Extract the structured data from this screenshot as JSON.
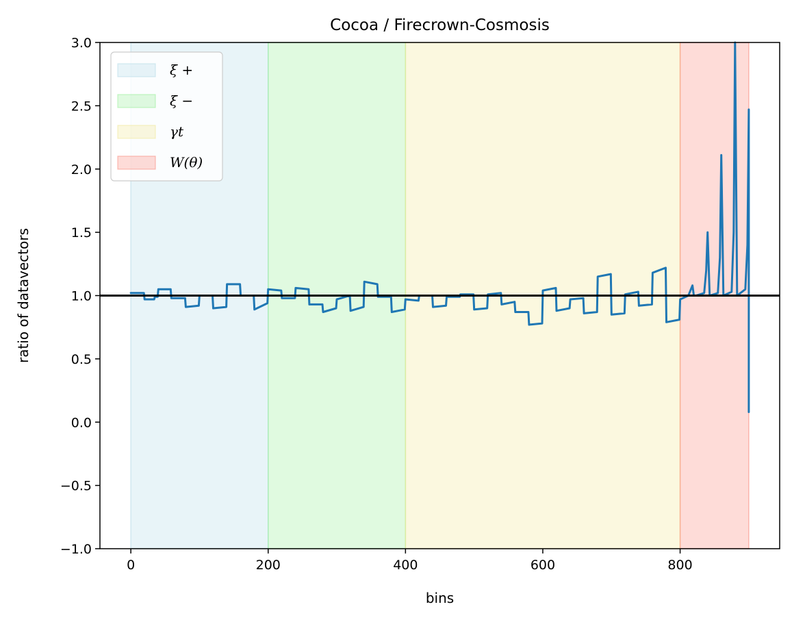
{
  "chart_data": {
    "type": "line",
    "title": "Cocoa / Firecrown-Cosmosis",
    "xlabel": "bins",
    "ylabel": "ratio of datavectors",
    "xlim": [
      -45,
      945
    ],
    "ylim": [
      -1.0,
      3.0
    ],
    "xticks": [
      0,
      200,
      400,
      600,
      800
    ],
    "yticks": [
      -1.0,
      -0.5,
      0.0,
      0.5,
      1.0,
      1.5,
      2.0,
      2.5,
      3.0
    ],
    "xtick_labels": [
      "0",
      "200",
      "400",
      "600",
      "800"
    ],
    "ytick_labels": [
      "−1.0",
      "−0.5",
      "0.0",
      "0.5",
      "1.0",
      "1.5",
      "2.0",
      "2.5",
      "3.0"
    ],
    "grid": false,
    "legend_position": "upper-left",
    "reference_line": {
      "y": 1.0,
      "color": "#000000"
    },
    "regions": [
      {
        "label": "ξ +",
        "x_start": 0,
        "x_end": 200,
        "color": "#add8e6"
      },
      {
        "label": "ξ −",
        "x_start": 200,
        "x_end": 400,
        "color": "#90ee90"
      },
      {
        "label": "γt",
        "x_start": 400,
        "x_end": 800,
        "color": "#f0e68c"
      },
      {
        "label": "W(θ)",
        "x_start": 800,
        "x_end": 900,
        "color": "#fa8072"
      }
    ],
    "series": [
      {
        "color": "#1f77b4",
        "x": [
          0,
          19,
          20,
          34,
          35,
          39,
          40,
          58,
          59,
          79,
          80,
          99,
          100,
          119,
          120,
          139,
          140,
          159,
          160,
          179,
          180,
          199,
          200,
          219,
          220,
          239,
          240,
          259,
          260,
          279,
          280,
          299,
          300,
          319,
          320,
          339,
          340,
          359,
          360,
          379,
          380,
          399,
          400,
          419,
          420,
          439,
          440,
          459,
          460,
          479,
          480,
          499,
          500,
          519,
          520,
          539,
          540,
          559,
          560,
          579,
          580,
          599,
          600,
          619,
          620,
          639,
          640,
          659,
          660,
          679,
          680,
          699,
          700,
          719,
          720,
          739,
          740,
          759,
          760,
          779,
          780,
          799,
          800,
          812,
          818,
          820,
          823,
          835,
          838,
          840,
          843,
          855,
          858,
          860,
          863,
          875,
          878,
          880,
          883,
          895,
          898,
          900,
          900
        ],
        "y": [
          1.02,
          1.02,
          0.97,
          0.97,
          0.99,
          0.99,
          1.05,
          1.05,
          0.98,
          0.98,
          0.91,
          0.92,
          1.0,
          1.0,
          0.9,
          0.91,
          1.09,
          1.09,
          1.0,
          1.0,
          0.89,
          0.94,
          1.05,
          1.04,
          0.98,
          0.98,
          1.06,
          1.05,
          0.93,
          0.93,
          0.87,
          0.9,
          0.97,
          1.0,
          0.88,
          0.91,
          1.11,
          1.09,
          0.99,
          0.99,
          0.87,
          0.89,
          0.97,
          0.96,
          1.0,
          1.0,
          0.91,
          0.92,
          0.99,
          0.99,
          1.01,
          1.01,
          0.89,
          0.9,
          1.01,
          1.02,
          0.93,
          0.95,
          0.87,
          0.87,
          0.77,
          0.78,
          1.04,
          1.06,
          0.88,
          0.9,
          0.97,
          0.98,
          0.86,
          0.87,
          1.15,
          1.17,
          0.85,
          0.86,
          1.01,
          1.03,
          0.92,
          0.93,
          1.18,
          1.22,
          0.79,
          0.81,
          0.97,
          1.0,
          1.08,
          1.0,
          1.0,
          1.02,
          1.2,
          1.5,
          1.0,
          1.02,
          1.3,
          2.11,
          1.0,
          1.03,
          1.5,
          3.0,
          1.0,
          1.05,
          1.4,
          2.47,
          0.08
        ]
      }
    ]
  }
}
